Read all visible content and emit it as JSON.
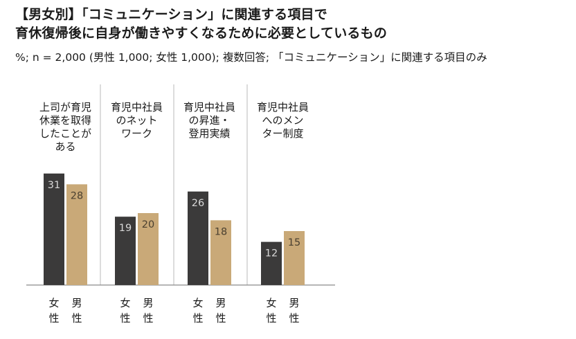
{
  "title": {
    "line1": "【男女別】「コミュニケーション」に関連する項目で",
    "line2": "育休復帰後に自身が働きやすくなるために必要としているもの"
  },
  "subtitle": "%; n = 2,000 (男性 1,000; 女性 1,000); 複数回答; 「コミュニケーション」に関連する項目のみ",
  "colors": {
    "female": "#3b3a3a",
    "male": "#c9a978",
    "value_female": "#d8d8d8",
    "value_male": "#4a4030",
    "divider": "#b8b8b8",
    "baseline": "#8a8a8a"
  },
  "chart_data": {
    "type": "bar",
    "title": "【男女別】「コミュニケーション」に関連する項目で 育休復帰後に自身が働きやすくなるために必要としているもの",
    "categories": [
      [
        "上司が育児",
        "休業を取得",
        "したことが",
        "ある"
      ],
      [
        "育児中社員",
        "のネット",
        "ワーク"
      ],
      [
        "育児中社員",
        "の昇進・",
        "登用実績"
      ],
      [
        "育児中社員",
        "へのメン",
        "ター制度"
      ]
    ],
    "series": [
      {
        "name": "女性",
        "label_chars": [
          "女",
          "性"
        ],
        "values": [
          31,
          19,
          26,
          12
        ]
      },
      {
        "name": "男性",
        "label_chars": [
          "男",
          "性"
        ],
        "values": [
          28,
          20,
          18,
          15
        ]
      }
    ],
    "unit": "%",
    "ylim": [
      0,
      40
    ],
    "grid": false,
    "legend": "below each bar"
  }
}
